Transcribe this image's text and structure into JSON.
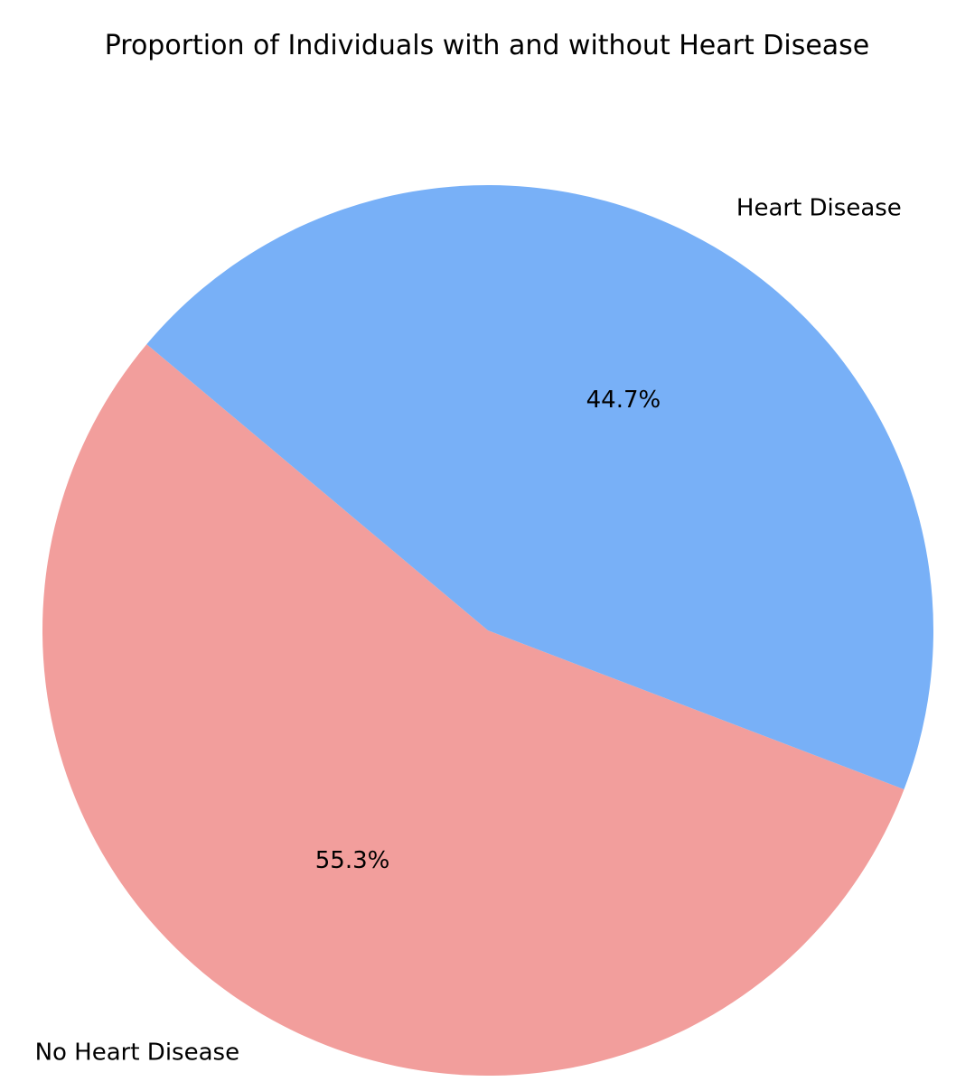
{
  "chart_data": {
    "type": "pie",
    "title": "Proportion of Individuals with and without Heart Disease",
    "slices": [
      {
        "label": "No Heart Disease",
        "value": 55.3,
        "pct_label": "55.3%",
        "color": "#f29e9c"
      },
      {
        "label": "Heart Disease",
        "value": 44.7,
        "pct_label": "44.7%",
        "color": "#78b0f7"
      }
    ],
    "start_angle": 140,
    "counterclockwise": true
  }
}
